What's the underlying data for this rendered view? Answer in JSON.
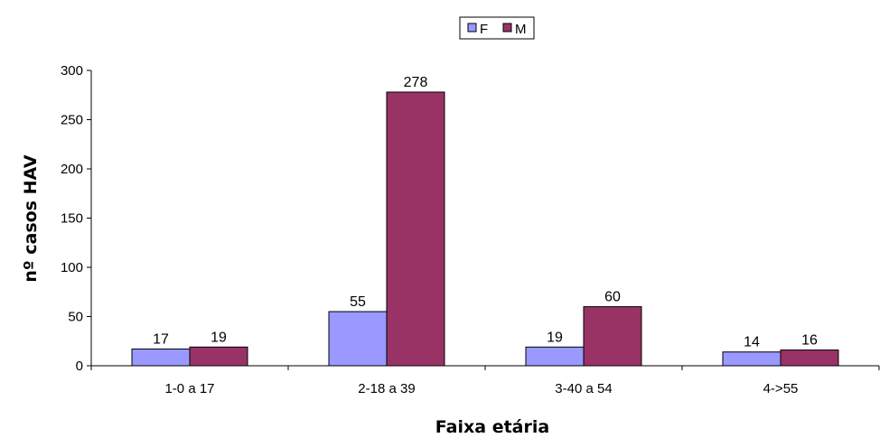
{
  "chart_data": {
    "type": "bar",
    "categories": [
      "1-0 a 17",
      "2-18 a 39",
      "3-40 a 54",
      "4->55"
    ],
    "series": [
      {
        "name": "F",
        "values": [
          17,
          55,
          19,
          14
        ],
        "color": "#9999ff"
      },
      {
        "name": "M",
        "values": [
          19,
          278,
          60,
          16
        ],
        "color": "#993366"
      }
    ],
    "xlabel": "Faixa etária",
    "ylabel": "nº casos HAV",
    "ylim": [
      0,
      300
    ],
    "yticks": [
      0,
      50,
      100,
      150,
      200,
      250,
      300
    ],
    "grid": false,
    "legend_position": "top-center",
    "data_labels": true
  }
}
